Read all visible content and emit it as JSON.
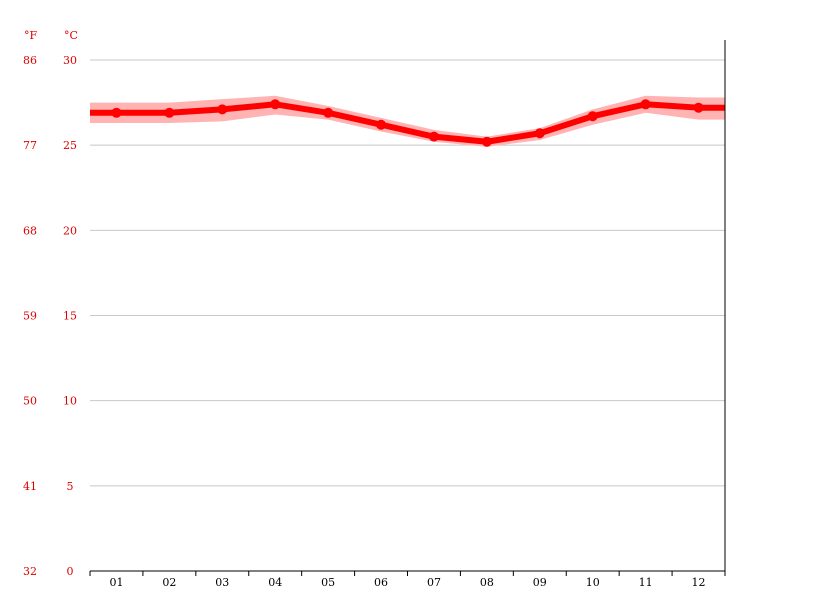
{
  "chart_data": {
    "type": "line",
    "title": "",
    "xlabel": "",
    "ylabel": "",
    "units": {
      "left": "°F",
      "right": "°C"
    },
    "categories": [
      "01",
      "02",
      "03",
      "04",
      "05",
      "06",
      "07",
      "08",
      "09",
      "10",
      "11",
      "12"
    ],
    "series": [
      {
        "name": "",
        "color": "#ff0000",
        "values": [
          26.9,
          26.9,
          27.1,
          27.4,
          26.9,
          26.2,
          25.5,
          25.2,
          25.7,
          26.7,
          27.4,
          27.2
        ]
      }
    ],
    "band": {
      "color": "#ffb3b3",
      "low": [
        26.3,
        26.3,
        26.4,
        26.8,
        26.5,
        25.8,
        25.2,
        24.9,
        25.3,
        26.2,
        26.9,
        26.5
      ],
      "high": [
        27.5,
        27.5,
        27.7,
        27.9,
        27.3,
        26.6,
        25.9,
        25.5,
        26.0,
        27.1,
        27.9,
        27.8
      ]
    },
    "ylim": [
      0,
      30
    ],
    "yticks_c": [
      "30",
      "25",
      "20",
      "15",
      "10",
      "5",
      "0"
    ],
    "yticks_f": [
      "86",
      "77",
      "68",
      "59",
      "50",
      "41",
      "32"
    ],
    "grid": true,
    "legend": "none"
  }
}
